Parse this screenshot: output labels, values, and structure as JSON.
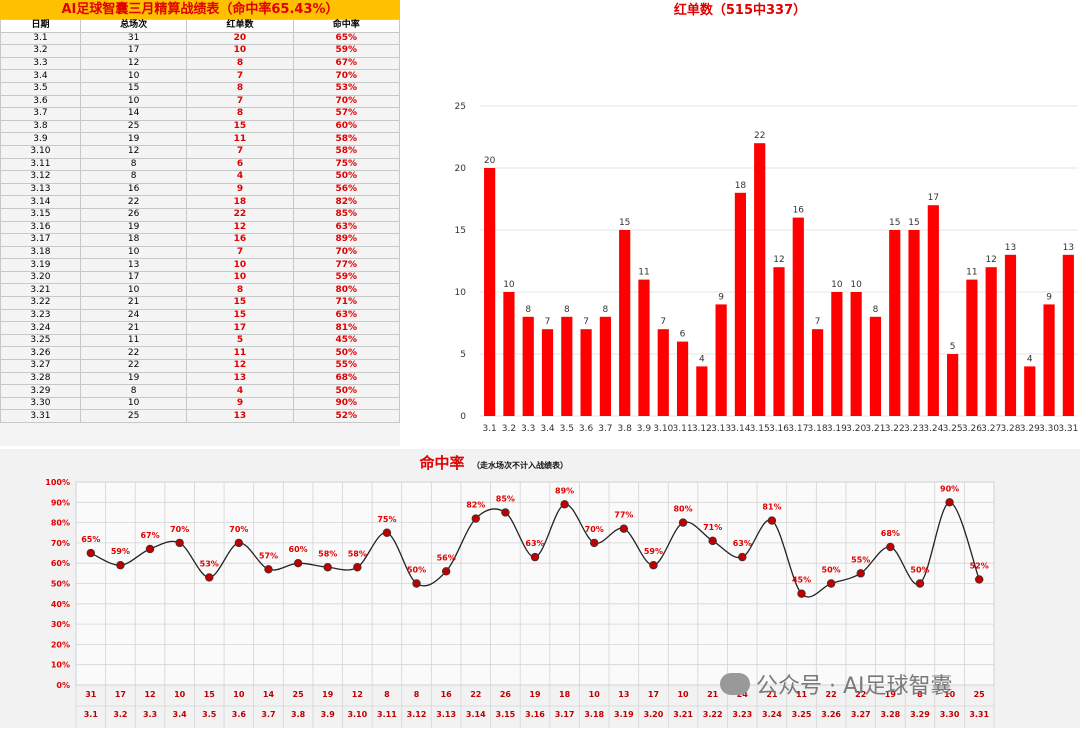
{
  "table": {
    "title": "AI足球智囊三月精算战绩表（命中率65.43%）",
    "headers": [
      "日期",
      "总场次",
      "红单数",
      "命中率"
    ],
    "rows": [
      [
        "3.1",
        "31",
        "20",
        "65%"
      ],
      [
        "3.2",
        "17",
        "10",
        "59%"
      ],
      [
        "3.3",
        "12",
        "8",
        "67%"
      ],
      [
        "3.4",
        "10",
        "7",
        "70%"
      ],
      [
        "3.5",
        "15",
        "8",
        "53%"
      ],
      [
        "3.6",
        "10",
        "7",
        "70%"
      ],
      [
        "3.7",
        "14",
        "8",
        "57%"
      ],
      [
        "3.8",
        "25",
        "15",
        "60%"
      ],
      [
        "3.9",
        "19",
        "11",
        "58%"
      ],
      [
        "3.10",
        "12",
        "7",
        "58%"
      ],
      [
        "3.11",
        "8",
        "6",
        "75%"
      ],
      [
        "3.12",
        "8",
        "4",
        "50%"
      ],
      [
        "3.13",
        "16",
        "9",
        "56%"
      ],
      [
        "3.14",
        "22",
        "18",
        "82%"
      ],
      [
        "3.15",
        "26",
        "22",
        "85%"
      ],
      [
        "3.16",
        "19",
        "12",
        "63%"
      ],
      [
        "3.17",
        "18",
        "16",
        "89%"
      ],
      [
        "3.18",
        "10",
        "7",
        "70%"
      ],
      [
        "3.19",
        "13",
        "10",
        "77%"
      ],
      [
        "3.20",
        "17",
        "10",
        "59%"
      ],
      [
        "3.21",
        "10",
        "8",
        "80%"
      ],
      [
        "3.22",
        "21",
        "15",
        "71%"
      ],
      [
        "3.23",
        "24",
        "15",
        "63%"
      ],
      [
        "3.24",
        "21",
        "17",
        "81%"
      ],
      [
        "3.25",
        "11",
        "5",
        "45%"
      ],
      [
        "3.26",
        "22",
        "11",
        "50%"
      ],
      [
        "3.27",
        "22",
        "12",
        "55%"
      ],
      [
        "3.28",
        "19",
        "13",
        "68%"
      ],
      [
        "3.29",
        "8",
        "4",
        "50%"
      ],
      [
        "3.30",
        "10",
        "9",
        "90%"
      ],
      [
        "3.31",
        "25",
        "13",
        "52%"
      ]
    ]
  },
  "chart_data": [
    {
      "type": "bar",
      "title": "红单数（515中337）",
      "categories": [
        "3.1",
        "3.2",
        "3.3",
        "3.4",
        "3.5",
        "3.6",
        "3.7",
        "3.8",
        "3.9",
        "3.10",
        "3.11",
        "3.12",
        "3.13",
        "3.14",
        "3.15",
        "3.16",
        "3.17",
        "3.18",
        "3.19",
        "3.20",
        "3.21",
        "3.22",
        "3.23",
        "3.24",
        "3.25",
        "3.26",
        "3.27",
        "3.28",
        "3.29",
        "3.30",
        "3.31"
      ],
      "values": [
        20,
        10,
        8,
        7,
        8,
        7,
        8,
        15,
        11,
        7,
        6,
        4,
        9,
        18,
        22,
        12,
        16,
        7,
        10,
        10,
        8,
        15,
        15,
        17,
        5,
        11,
        12,
        13,
        4,
        9,
        13
      ],
      "yticks": [
        "0",
        "5",
        "10",
        "15",
        "20",
        "25"
      ],
      "ylim": [
        0,
        25
      ],
      "color": "#ff0000"
    },
    {
      "type": "line",
      "title": "命中率",
      "subtitle": "（走水场次不计入战绩表）",
      "categories": [
        "3.1",
        "3.2",
        "3.3",
        "3.4",
        "3.5",
        "3.6",
        "3.7",
        "3.8",
        "3.9",
        "3.10",
        "3.11",
        "3.12",
        "3.13",
        "3.14",
        "3.15",
        "3.16",
        "3.17",
        "3.18",
        "3.19",
        "3.20",
        "3.21",
        "3.22",
        "3.23",
        "3.24",
        "3.25",
        "3.26",
        "3.27",
        "3.28",
        "3.29",
        "3.30",
        "3.31"
      ],
      "totals": [
        "31",
        "17",
        "12",
        "10",
        "15",
        "10",
        "14",
        "25",
        "19",
        "12",
        "8",
        "8",
        "16",
        "22",
        "26",
        "19",
        "18",
        "10",
        "13",
        "17",
        "10",
        "21",
        "24",
        "21",
        "11",
        "22",
        "22",
        "19",
        "8",
        "10",
        "25"
      ],
      "values": [
        65,
        59,
        67,
        70,
        53,
        70,
        57,
        60,
        58,
        58,
        75,
        50,
        56,
        82,
        85,
        63,
        89,
        70,
        77,
        59,
        80,
        71,
        63,
        81,
        45,
        50,
        55,
        68,
        50,
        90,
        52
      ],
      "labels": [
        "65%",
        "59%",
        "67%",
        "70%",
        "53%",
        "70%",
        "57%",
        "60%",
        "58%",
        "58%",
        "75%",
        "50%",
        "56%",
        "82%",
        "85%",
        "63%",
        "89%",
        "70%",
        "77%",
        "59%",
        "80%",
        "71%",
        "63%",
        "81%",
        "45%",
        "50%",
        "55%",
        "68%",
        "50%",
        "90%",
        "52%"
      ],
      "yticks": [
        "0%",
        "10%",
        "20%",
        "30%",
        "40%",
        "50%",
        "60%",
        "70%",
        "80%",
        "90%",
        "100%"
      ],
      "ylim": [
        0,
        100
      ],
      "line_color": "#222222",
      "marker_color": "#c00000"
    }
  ],
  "watermark": "公众号 · AI足球智囊"
}
